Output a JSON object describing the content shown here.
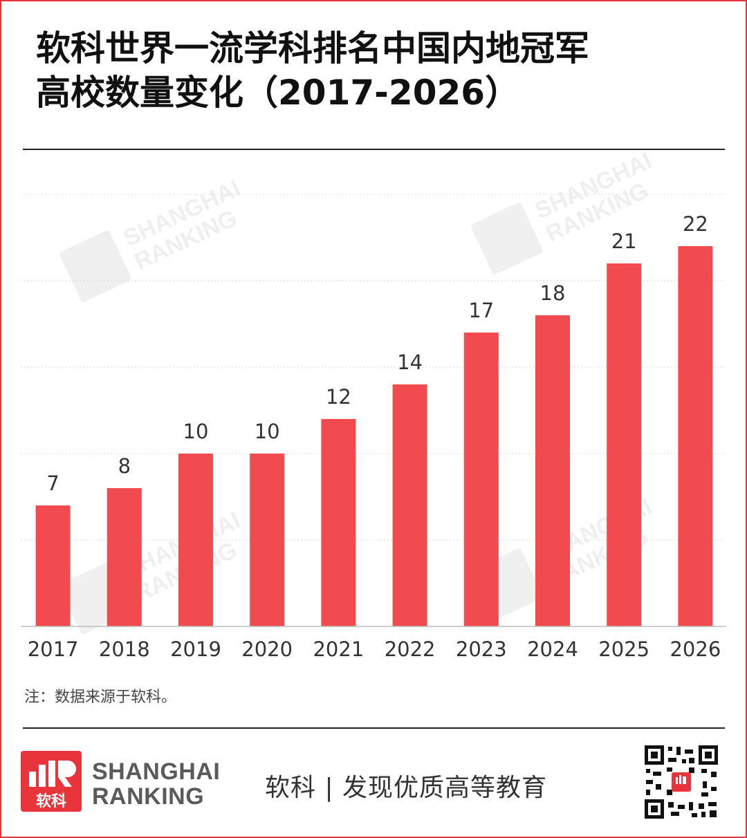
{
  "title": {
    "line1": "软科世界一流学科排名中国内地冠军",
    "line2": "高校数量变化（2017-2026）"
  },
  "chart_data": {
    "type": "bar",
    "categories": [
      "2017",
      "2018",
      "2019",
      "2020",
      "2021",
      "2022",
      "2023",
      "2024",
      "2025",
      "2026"
    ],
    "values": [
      7,
      8,
      10,
      10,
      12,
      14,
      17,
      18,
      21,
      22
    ],
    "title": "软科世界一流学科排名中国内地冠军高校数量变化（2017-2026）",
    "xlabel": "",
    "ylabel": "",
    "ylim": [
      0,
      25
    ],
    "grid": true,
    "bar_color": "#f24b4f",
    "data_labels": true
  },
  "note": "注：数据来源于软科。",
  "watermark": {
    "line1": "SHANGHAI",
    "line2": "RANKING"
  },
  "footer": {
    "logo_line1": "SHANGHAI",
    "logo_line2": "RANKING",
    "logo_cn": "软科",
    "slogan": "软科 | 发现优质高等教育",
    "accent": "#e8343a",
    "qr_icon": "qr-code-icon"
  }
}
